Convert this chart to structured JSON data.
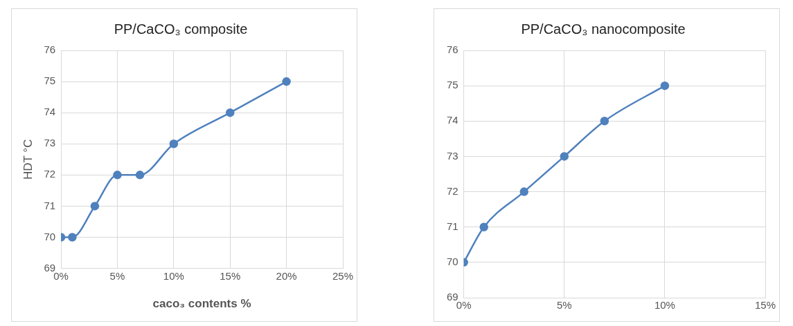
{
  "chart_data": [
    {
      "type": "line",
      "title": "PP/CaCO₃ composite",
      "xlabel": "caco₃ contents %",
      "ylabel": "HDT °C",
      "x": [
        0,
        1,
        3,
        5,
        7,
        10,
        15,
        20
      ],
      "series": [
        {
          "color": "#4f81bd",
          "values": [
            70,
            70,
            71,
            72,
            72,
            73,
            74,
            75
          ]
        }
      ],
      "xlim": [
        0,
        25
      ],
      "xticks": [
        {
          "value": 0,
          "label": "0%"
        },
        {
          "value": 5,
          "label": "5%"
        },
        {
          "value": 10,
          "label": "10%"
        },
        {
          "value": 15,
          "label": "15%"
        },
        {
          "value": 20,
          "label": "20%"
        },
        {
          "value": 25,
          "label": "25%"
        }
      ],
      "ylim": [
        69,
        76
      ],
      "yticks": [
        69,
        70,
        71,
        72,
        73,
        74,
        75,
        76
      ],
      "grid": true,
      "marker": "circle",
      "line_style": "solid"
    },
    {
      "type": "line",
      "title": "PP/CaCO₃ nanocomposite",
      "x": [
        0,
        1,
        3,
        5,
        7,
        10
      ],
      "series": [
        {
          "color": "#4f81bd",
          "values": [
            70,
            71,
            72,
            73,
            74,
            75
          ]
        }
      ],
      "xlim": [
        0,
        15
      ],
      "xticks": [
        {
          "value": 0,
          "label": "0%"
        },
        {
          "value": 5,
          "label": "5%"
        },
        {
          "value": 10,
          "label": "10%"
        },
        {
          "value": 15,
          "label": "15%"
        }
      ],
      "ylim": [
        69,
        76
      ],
      "yticks": [
        69,
        70,
        71,
        72,
        73,
        74,
        75,
        76
      ],
      "grid": true,
      "marker": "circle",
      "line_style": "solid"
    }
  ]
}
